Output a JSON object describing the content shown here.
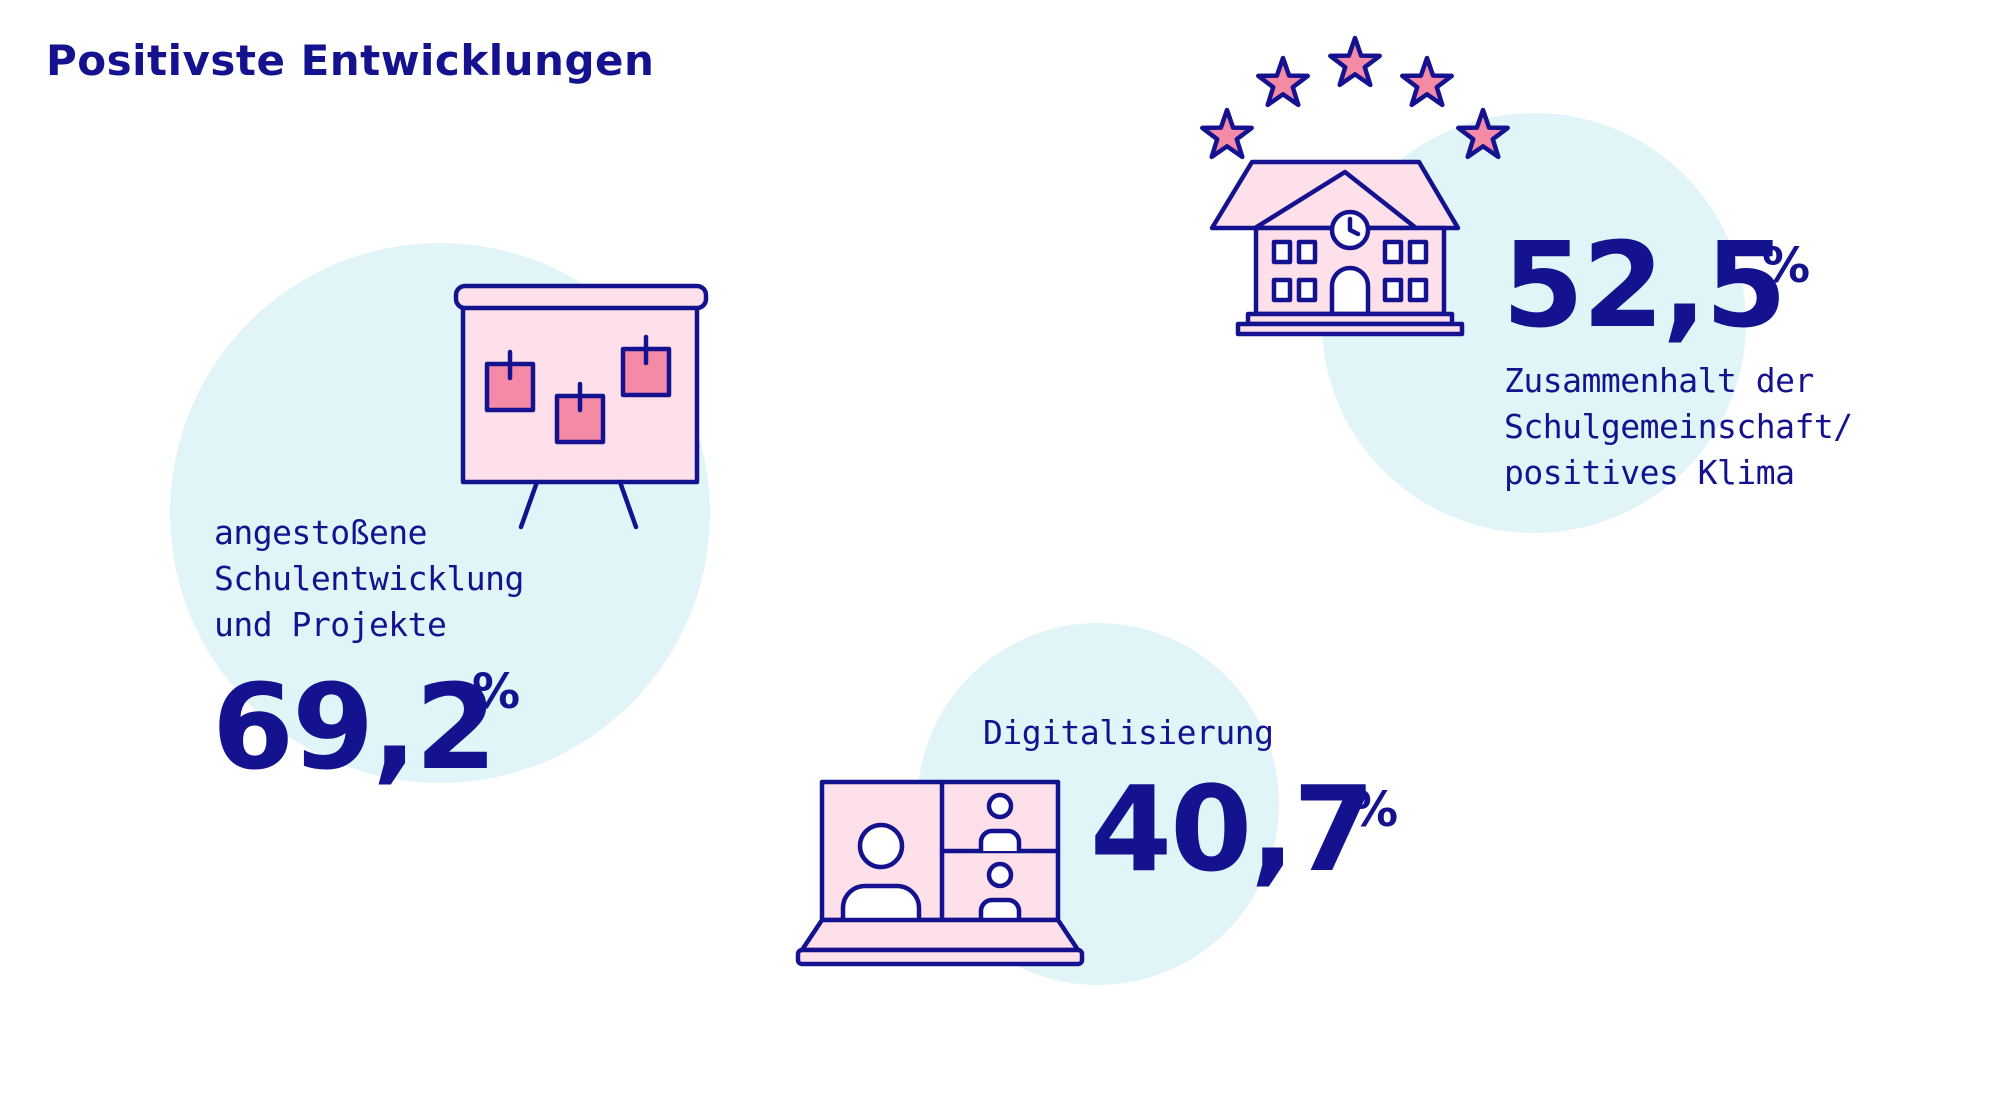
{
  "title": "Positivste Entwicklungen",
  "colors": {
    "navy": "#15128f",
    "blob": "#e1f4f7",
    "pink_light": "#fde0ea",
    "pink_dark": "#f48aa6"
  },
  "items": [
    {
      "id": "schulentwicklung",
      "value": "69,2",
      "unit": "%",
      "label_lines": [
        "angestoßene",
        "Schulentwicklung",
        "und Projekte"
      ],
      "icon": "presentation-board-icon"
    },
    {
      "id": "zusammenhalt",
      "value": "52,5",
      "unit": "%",
      "label_lines": [
        "Zusammenhalt der",
        "Schulgemeinschaft/",
        "positives Klima"
      ],
      "icon": "school-building-icon"
    },
    {
      "id": "digitalisierung",
      "value": "40,7",
      "unit": "%",
      "label_lines": [
        "Digitalisierung"
      ],
      "icon": "video-call-laptop-icon"
    }
  ]
}
